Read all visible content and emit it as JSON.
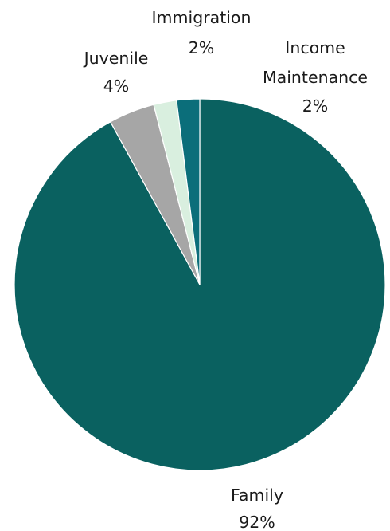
{
  "chart_data": {
    "type": "pie",
    "title": "",
    "slices": [
      {
        "label": "Family",
        "value": 92,
        "display": "92%",
        "color": "#0a6160"
      },
      {
        "label": "Juvenile",
        "value": 4,
        "display": "4%",
        "color": "#a6a6a6"
      },
      {
        "label": "Immigration",
        "value": 2,
        "display": "2%",
        "color": "#d9efdf"
      },
      {
        "label": "Income Maintenance",
        "value": 2,
        "display": "2%",
        "color": "#0b6e7a"
      }
    ],
    "legend": "none",
    "start": "12 o'clock",
    "direction": "counter-clockwise"
  }
}
